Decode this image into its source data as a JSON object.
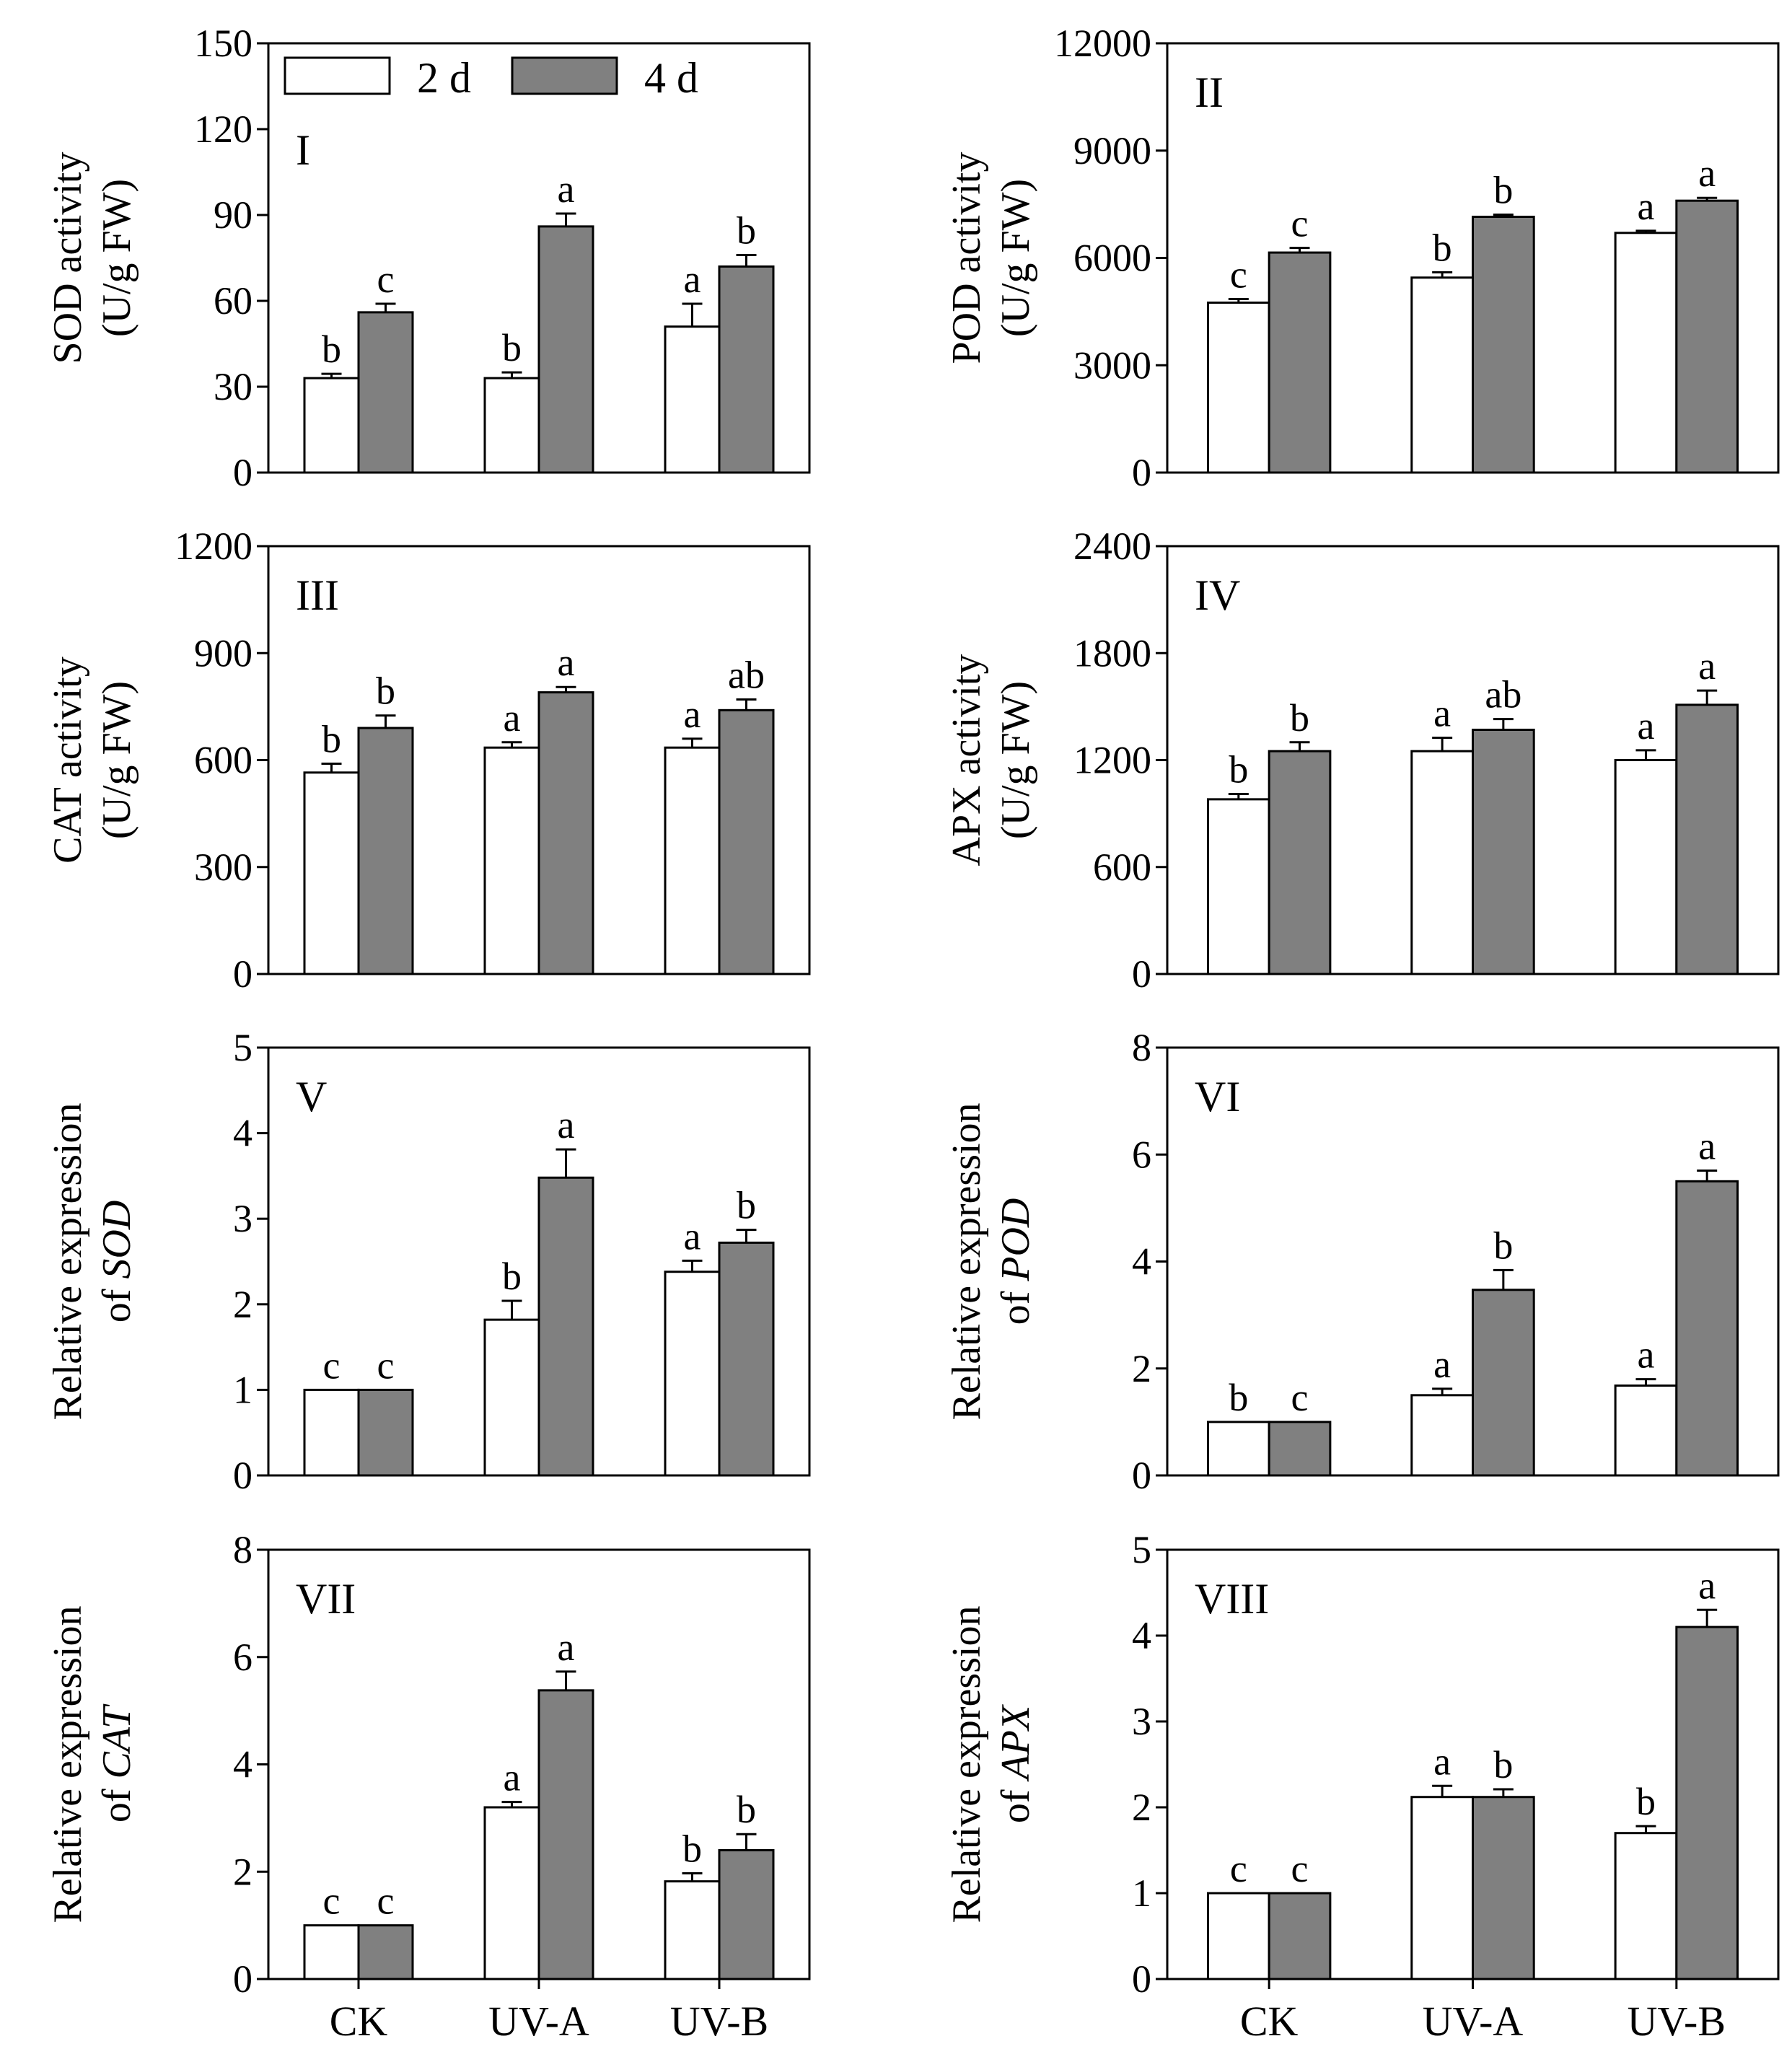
{
  "legend": {
    "entries": [
      {
        "label": "2 d",
        "color": "#ffffff"
      },
      {
        "label": "4 d",
        "color": "#808080"
      }
    ]
  },
  "colors": {
    "series_2d": "#ffffff",
    "series_4d": "#808080",
    "axis": "#000000"
  },
  "chart_data": [
    {
      "type": "bar",
      "panel": "I",
      "ylabel": [
        "SOD activity",
        "(U/g FW)"
      ],
      "categories": [
        "CK",
        "UV-A",
        "UV-B"
      ],
      "ylim": [
        0,
        150
      ],
      "yticks": [
        0,
        30,
        60,
        90,
        120,
        150
      ],
      "series": [
        {
          "name": "2 d",
          "values": [
            33,
            33,
            51
          ],
          "errors": [
            1.5,
            2,
            8
          ],
          "sig": [
            "b",
            "b",
            "a"
          ]
        },
        {
          "name": "4 d",
          "values": [
            56,
            86,
            72
          ],
          "errors": [
            3,
            4.5,
            4
          ],
          "sig": [
            "c",
            "a",
            "b"
          ]
        }
      ]
    },
    {
      "type": "bar",
      "panel": "II",
      "ylabel": [
        "POD activity",
        "(U/g FW)"
      ],
      "categories": [
        "CK",
        "UV-A",
        "UV-B"
      ],
      "ylim": [
        0,
        12000
      ],
      "yticks": [
        0,
        3000,
        6000,
        9000,
        12000
      ],
      "series": [
        {
          "name": "2 d",
          "values": [
            4750,
            5450,
            6700
          ],
          "errors": [
            100,
            150,
            60
          ],
          "sig": [
            "c",
            "b",
            "a"
          ]
        },
        {
          "name": "4 d",
          "values": [
            6150,
            7150,
            7600
          ],
          "errors": [
            130,
            60,
            80
          ],
          "sig": [
            "c",
            "b",
            "a"
          ]
        }
      ]
    },
    {
      "type": "bar",
      "panel": "III",
      "ylabel": [
        "CAT activity",
        "(U/g FW)"
      ],
      "categories": [
        "CK",
        "UV-A",
        "UV-B"
      ],
      "ylim": [
        0,
        1200
      ],
      "yticks": [
        0,
        300,
        600,
        900,
        1200
      ],
      "series": [
        {
          "name": "2 d",
          "values": [
            565,
            635,
            635
          ],
          "errors": [
            25,
            15,
            25
          ],
          "sig": [
            "b",
            "a",
            "a"
          ]
        },
        {
          "name": "4 d",
          "values": [
            690,
            790,
            740
          ],
          "errors": [
            35,
            15,
            30
          ],
          "sig": [
            "b",
            "a",
            "ab"
          ]
        }
      ]
    },
    {
      "type": "bar",
      "panel": "IV",
      "ylabel": [
        "APX activity",
        "(U/g FW)"
      ],
      "categories": [
        "CK",
        "UV-A",
        "UV-B"
      ],
      "ylim": [
        0,
        2400
      ],
      "yticks": [
        600,
        1200,
        1800,
        2400
      ],
      "ytick_zero": "0",
      "series": [
        {
          "name": "2 d",
          "values": [
            980,
            1250,
            1200
          ],
          "errors": [
            30,
            75,
            55
          ],
          "sig": [
            "b",
            "a",
            "a"
          ]
        },
        {
          "name": "4 d",
          "values": [
            1250,
            1370,
            1510
          ],
          "errors": [
            50,
            60,
            80
          ],
          "sig": [
            "b",
            "ab",
            "a"
          ]
        }
      ]
    },
    {
      "type": "bar",
      "panel": "V",
      "ylabel": [
        "Relative expression",
        "of ",
        "SOD"
      ],
      "categories": [
        "CK",
        "UV-A",
        "UV-B"
      ],
      "ylim": [
        0,
        5
      ],
      "yticks": [
        0,
        1,
        2,
        3,
        4,
        5
      ],
      "series": [
        {
          "name": "2 d",
          "values": [
            1.0,
            1.82,
            2.38
          ],
          "errors": [
            0,
            0.22,
            0.13
          ],
          "sig": [
            "c",
            "b",
            "a"
          ]
        },
        {
          "name": "4 d",
          "values": [
            1.0,
            3.48,
            2.72
          ],
          "errors": [
            0,
            0.33,
            0.15
          ],
          "sig": [
            "c",
            "a",
            "b"
          ]
        }
      ]
    },
    {
      "type": "bar",
      "panel": "VI",
      "ylabel": [
        "Relative expression",
        "of ",
        "POD"
      ],
      "categories": [
        "CK",
        "UV-A",
        "UV-B"
      ],
      "ylim": [
        0,
        8
      ],
      "yticks": [
        0,
        2,
        4,
        6,
        8
      ],
      "series": [
        {
          "name": "2 d",
          "values": [
            1.0,
            1.5,
            1.68
          ],
          "errors": [
            0,
            0.12,
            0.12
          ],
          "sig": [
            "b",
            "a",
            "a"
          ]
        },
        {
          "name": "4 d",
          "values": [
            1.0,
            3.47,
            5.5
          ],
          "errors": [
            0,
            0.37,
            0.2
          ],
          "sig": [
            "c",
            "b",
            "a"
          ]
        }
      ]
    },
    {
      "type": "bar",
      "panel": "VII",
      "ylabel": [
        "Relative expression",
        "of ",
        "CAT"
      ],
      "categories": [
        "CK",
        "UV-A",
        "UV-B"
      ],
      "ylim": [
        0,
        8
      ],
      "yticks": [
        0,
        2,
        4,
        6,
        8
      ],
      "series": [
        {
          "name": "2 d",
          "values": [
            1.0,
            3.2,
            1.82
          ],
          "errors": [
            0,
            0.1,
            0.15
          ],
          "sig": [
            "c",
            "a",
            "b"
          ]
        },
        {
          "name": "4 d",
          "values": [
            1.0,
            5.38,
            2.4
          ],
          "errors": [
            0,
            0.35,
            0.3
          ],
          "sig": [
            "c",
            "a",
            "b"
          ]
        }
      ]
    },
    {
      "type": "bar",
      "panel": "VIII",
      "ylabel": [
        "Relative expression",
        "of ",
        "APX"
      ],
      "categories": [
        "CK",
        "UV-A",
        "UV-B"
      ],
      "ylim": [
        0,
        5
      ],
      "yticks": [
        0,
        1,
        2,
        3,
        4,
        5
      ],
      "series": [
        {
          "name": "2 d",
          "values": [
            1.0,
            2.12,
            1.7
          ],
          "errors": [
            0,
            0.13,
            0.08
          ],
          "sig": [
            "c",
            "a",
            "b"
          ]
        },
        {
          "name": "4 d",
          "values": [
            1.0,
            2.12,
            4.1
          ],
          "errors": [
            0,
            0.09,
            0.2
          ],
          "sig": [
            "c",
            "b",
            "a"
          ]
        }
      ]
    }
  ]
}
